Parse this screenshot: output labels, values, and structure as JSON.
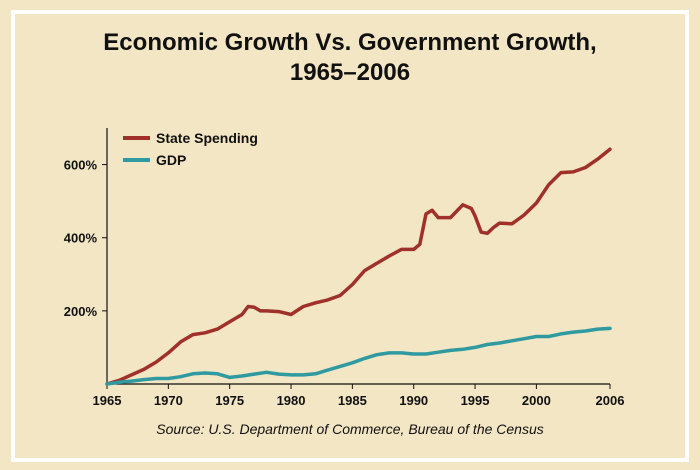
{
  "chart_data": {
    "type": "line",
    "title_lines": [
      "Economic Growth Vs. Government Growth,",
      "1965–2006"
    ],
    "source": "Source: U.S. Department of Commerce, Bureau of the Census",
    "xlim": [
      1965,
      2006
    ],
    "ylim": [
      0,
      700
    ],
    "x_ticks": [
      1965,
      1970,
      1975,
      1980,
      1985,
      1990,
      1995,
      2000,
      2006
    ],
    "y_ticks": [
      {
        "value": 200,
        "label": "200%"
      },
      {
        "value": 400,
        "label": "400%"
      },
      {
        "value": 600,
        "label": "600%"
      }
    ],
    "grid": false,
    "legend_position": "top-left",
    "series": [
      {
        "name": "State Spending",
        "color": "#a0302a",
        "points": [
          [
            1965,
            0
          ],
          [
            1966,
            10
          ],
          [
            1967,
            25
          ],
          [
            1968,
            40
          ],
          [
            1969,
            60
          ],
          [
            1970,
            85
          ],
          [
            1971,
            115
          ],
          [
            1972,
            135
          ],
          [
            1973,
            140
          ],
          [
            1974,
            150
          ],
          [
            1975,
            170
          ],
          [
            1976,
            190
          ],
          [
            1976.5,
            212
          ],
          [
            1977,
            210
          ],
          [
            1977.5,
            200
          ],
          [
            1978,
            200
          ],
          [
            1979,
            198
          ],
          [
            1980,
            190
          ],
          [
            1981,
            212
          ],
          [
            1982,
            222
          ],
          [
            1983,
            230
          ],
          [
            1984,
            242
          ],
          [
            1985,
            272
          ],
          [
            1986,
            310
          ],
          [
            1987,
            330
          ],
          [
            1988,
            350
          ],
          [
            1989,
            368
          ],
          [
            1990,
            368
          ],
          [
            1990.5,
            382
          ],
          [
            1991,
            465
          ],
          [
            1991.5,
            475
          ],
          [
            1992,
            455
          ],
          [
            1993,
            455
          ],
          [
            1994,
            490
          ],
          [
            1994.7,
            480
          ],
          [
            1995,
            460
          ],
          [
            1995.5,
            415
          ],
          [
            1996,
            412
          ],
          [
            1996.5,
            428
          ],
          [
            1997,
            440
          ],
          [
            1998,
            438
          ],
          [
            1999,
            462
          ],
          [
            2000,
            495
          ],
          [
            2001,
            545
          ],
          [
            2002,
            578
          ],
          [
            2003,
            580
          ],
          [
            2004,
            592
          ],
          [
            2005,
            615
          ],
          [
            2006,
            642
          ]
        ]
      },
      {
        "name": "GDP",
        "color": "#2f9aa0",
        "points": [
          [
            1965,
            0
          ],
          [
            1966,
            5
          ],
          [
            1967,
            8
          ],
          [
            1968,
            12
          ],
          [
            1969,
            15
          ],
          [
            1970,
            15
          ],
          [
            1971,
            20
          ],
          [
            1972,
            28
          ],
          [
            1973,
            30
          ],
          [
            1974,
            28
          ],
          [
            1975,
            18
          ],
          [
            1976,
            22
          ],
          [
            1977,
            27
          ],
          [
            1978,
            32
          ],
          [
            1979,
            27
          ],
          [
            1980,
            25
          ],
          [
            1981,
            25
          ],
          [
            1982,
            28
          ],
          [
            1983,
            38
          ],
          [
            1984,
            48
          ],
          [
            1985,
            58
          ],
          [
            1986,
            70
          ],
          [
            1987,
            80
          ],
          [
            1988,
            85
          ],
          [
            1989,
            85
          ],
          [
            1990,
            82
          ],
          [
            1991,
            82
          ],
          [
            1992,
            87
          ],
          [
            1993,
            92
          ],
          [
            1994,
            95
          ],
          [
            1995,
            100
          ],
          [
            1996,
            108
          ],
          [
            1997,
            112
          ],
          [
            1998,
            118
          ],
          [
            1999,
            124
          ],
          [
            2000,
            130
          ],
          [
            2001,
            130
          ],
          [
            2002,
            137
          ],
          [
            2003,
            142
          ],
          [
            2004,
            145
          ],
          [
            2005,
            150
          ],
          [
            2006,
            152
          ]
        ]
      }
    ]
  }
}
